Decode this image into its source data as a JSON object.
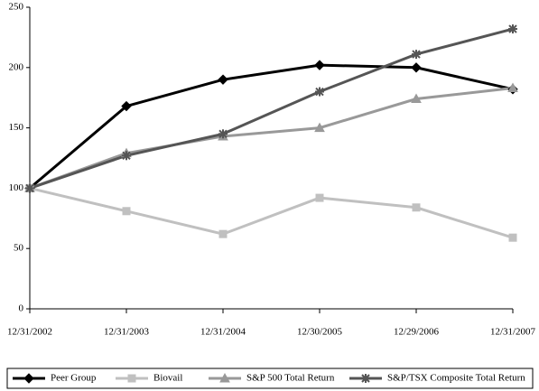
{
  "chart_data": {
    "type": "line",
    "categories": [
      "12/31/2002",
      "12/31/2003",
      "12/31/2004",
      "12/30/2005",
      "12/29/2006",
      "12/31/2007"
    ],
    "series": [
      {
        "name": "Peer Group",
        "color": "#000000",
        "marker": "diamond",
        "values": [
          100,
          168,
          190,
          202,
          200,
          182
        ]
      },
      {
        "name": "Biovail",
        "color": "#c0c0c0",
        "marker": "square",
        "values": [
          100,
          81,
          62,
          92,
          84,
          59
        ]
      },
      {
        "name": "S&P 500 Total Return",
        "color": "#999999",
        "marker": "triangle",
        "values": [
          100,
          129,
          143,
          150,
          174,
          183
        ]
      },
      {
        "name": "S&P/TSX Composite Total Return",
        "color": "#555555",
        "marker": "star",
        "values": [
          100,
          127,
          145,
          180,
          211,
          232
        ]
      }
    ],
    "ylim": [
      0,
      250
    ],
    "yticks": [
      0,
      50,
      100,
      150,
      200,
      250
    ],
    "grid": false,
    "legend": "bottom"
  }
}
